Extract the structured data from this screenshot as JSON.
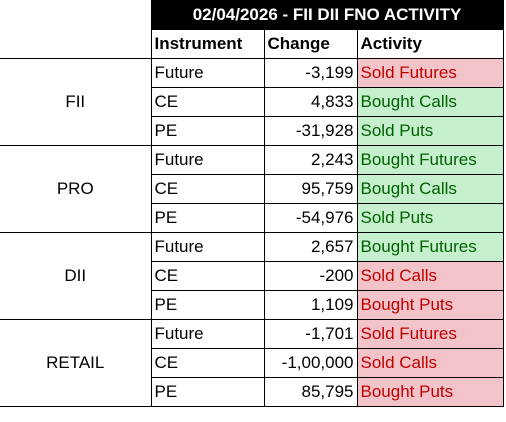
{
  "title": "02/04/2026 - FII DII FNO ACTIVITY",
  "headers": {
    "instrument": "Instrument",
    "change": "Change",
    "activity": "Activity"
  },
  "colors": {
    "buy_bg": "#c6efce",
    "buy_text": "#006100",
    "sell_bg": "#f2c4c9",
    "sell_text": "#c00000",
    "title_bg": "#000000"
  },
  "groups": [
    {
      "name": "FII",
      "rows": [
        {
          "instrument": "Future",
          "change": "-3,199",
          "activity": "Sold Futures",
          "type": "sell"
        },
        {
          "instrument": "CE",
          "change": "4,833",
          "activity": "Bought Calls",
          "type": "buy"
        },
        {
          "instrument": "PE",
          "change": "-31,928",
          "activity": "Sold Puts",
          "type": "buy"
        }
      ]
    },
    {
      "name": "PRO",
      "rows": [
        {
          "instrument": "Future",
          "change": "2,243",
          "activity": "Bought Futures",
          "type": "buy"
        },
        {
          "instrument": "CE",
          "change": "95,759",
          "activity": "Bought Calls",
          "type": "buy"
        },
        {
          "instrument": "PE",
          "change": "-54,976",
          "activity": "Sold Puts",
          "type": "buy"
        }
      ]
    },
    {
      "name": "DII",
      "rows": [
        {
          "instrument": "Future",
          "change": "2,657",
          "activity": "Bought Futures",
          "type": "buy"
        },
        {
          "instrument": "CE",
          "change": "-200",
          "activity": "Sold Calls",
          "type": "sell"
        },
        {
          "instrument": "PE",
          "change": "1,109",
          "activity": "Bought Puts",
          "type": "sell"
        }
      ]
    },
    {
      "name": "RETAIL",
      "rows": [
        {
          "instrument": "Future",
          "change": "-1,701",
          "activity": "Sold Futures",
          "type": "sell"
        },
        {
          "instrument": "CE",
          "change": "-1,00,000",
          "activity": "Sold Calls",
          "type": "sell"
        },
        {
          "instrument": "PE",
          "change": "85,795",
          "activity": "Bought Puts",
          "type": "sell"
        }
      ]
    }
  ]
}
